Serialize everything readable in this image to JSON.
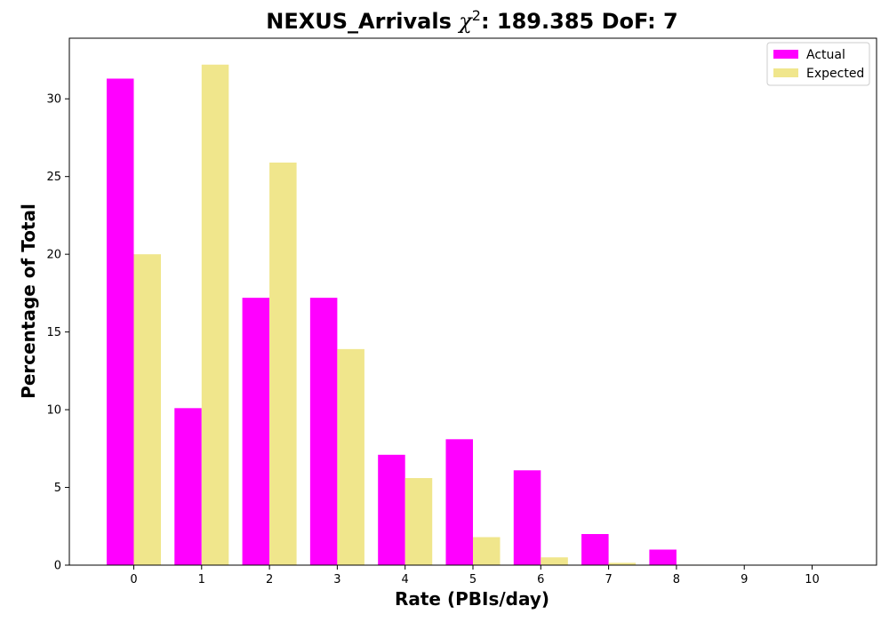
{
  "chart_data": {
    "type": "bar",
    "title": "NEXUS_Arrivals χ²: 189.385 DoF: 7",
    "title_parts": {
      "prefix": "NEXUS_Arrivals ",
      "chi": "χ",
      "sup": "2",
      "suffix": ": 189.385 DoF: 7"
    },
    "xlabel": "Rate (PBIs/day)",
    "ylabel": "Percentage of Total",
    "categories": [
      "0",
      "1",
      "2",
      "3",
      "4",
      "5",
      "6",
      "7",
      "8",
      "9",
      "10"
    ],
    "yticks": [
      "0",
      "5",
      "10",
      "15",
      "20",
      "25",
      "30"
    ],
    "ylim": [
      0,
      33.9
    ],
    "xlim": [
      -0.95,
      10.95
    ],
    "legend_position": "top-right",
    "grid": false,
    "series": [
      {
        "name": "Actual",
        "color": "#ff00ff",
        "values": [
          31.3,
          10.1,
          17.2,
          17.2,
          7.1,
          8.1,
          6.1,
          2.0,
          1.0,
          0,
          0
        ]
      },
      {
        "name": "Expected",
        "color": "#f0e68c",
        "values": [
          20.0,
          32.2,
          25.9,
          13.9,
          5.6,
          1.8,
          0.5,
          0.15,
          0.03,
          0.01,
          0.0
        ]
      }
    ]
  }
}
